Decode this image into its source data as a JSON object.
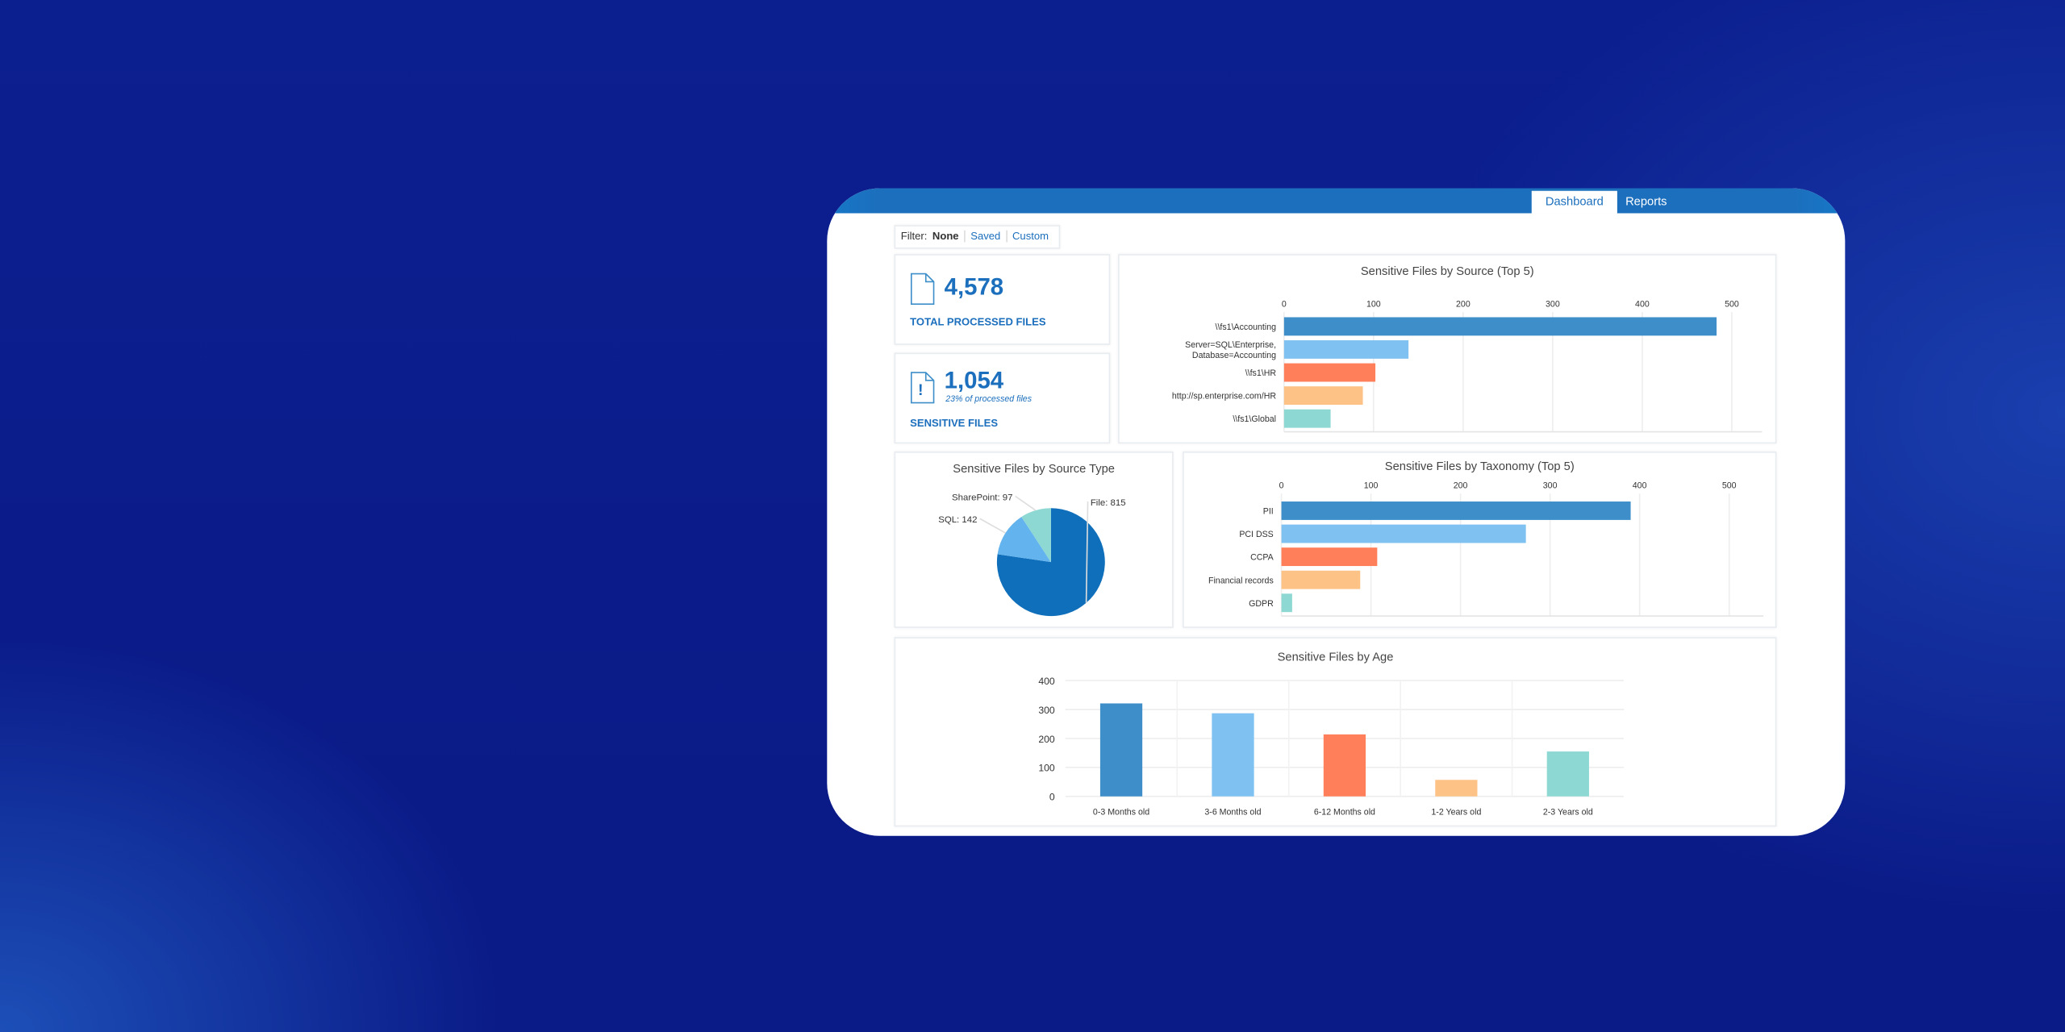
{
  "tabs": [
    {
      "label": "Dashboard",
      "active": true
    },
    {
      "label": "Reports",
      "active": false
    }
  ],
  "filter": {
    "label": "Filter:",
    "none": "None",
    "saved": "Saved",
    "custom": "Custom"
  },
  "kpis": [
    {
      "icon": "file-icon",
      "value": "4,578",
      "label": "TOTAL PROCESSED FILES"
    },
    {
      "icon": "file-alert-icon",
      "value": "1,054",
      "sub": "23% of processed files",
      "label": "SENSITIVE FILES"
    }
  ],
  "colors": [
    "#3d8ec9",
    "#7fc2f2",
    "#ff7f5a",
    "#fdc286",
    "#8ed8d4"
  ],
  "chart_data": [
    {
      "type": "bar",
      "orientation": "horizontal",
      "title": "Sensitive Files by Source  (Top 5)",
      "categories": [
        "\\\\fs1\\Accounting",
        "Server=SQL\\Enterprise,\nDatabase=Accounting",
        "\\\\fs1\\HR",
        "http://sp.enterprise.com/HR",
        "\\\\fs1\\Global"
      ],
      "values": [
        483,
        139,
        102,
        88,
        52
      ],
      "xlim": [
        0,
        500
      ],
      "ticks": [
        0,
        100,
        200,
        300,
        400,
        500
      ]
    },
    {
      "type": "pie",
      "title": "Sensitive Files by Source Type",
      "slices": [
        {
          "label": "File",
          "value": 815,
          "color": "#0f6fba",
          "text": "File: 815"
        },
        {
          "label": "SQL",
          "value": 142,
          "color": "#62b3ee",
          "text": "SQL: 142"
        },
        {
          "label": "SharePoint",
          "value": 97,
          "color": "#8ed8d4",
          "text": "SharePoint: 97"
        }
      ]
    },
    {
      "type": "bar",
      "orientation": "horizontal",
      "title": "Sensitive Files by Taxonomy  (Top 5)",
      "categories": [
        "PII",
        "PCI DSS",
        "CCPA",
        "Financial records",
        "GDPR"
      ],
      "values": [
        390,
        273,
        107,
        88,
        12
      ],
      "xlim": [
        0,
        500
      ],
      "ticks": [
        0,
        100,
        200,
        300,
        400,
        500
      ]
    },
    {
      "type": "bar",
      "orientation": "vertical",
      "title": "Sensitive Files by Age",
      "categories": [
        "0-3 Months old",
        "3-6 Months old",
        "6-12 Months old",
        "1-2 Years old",
        "2-3 Years old"
      ],
      "values": [
        321,
        287,
        214,
        57,
        155
      ],
      "ylim": [
        0,
        400
      ],
      "ticks": [
        0,
        100,
        200,
        300,
        400
      ]
    }
  ]
}
